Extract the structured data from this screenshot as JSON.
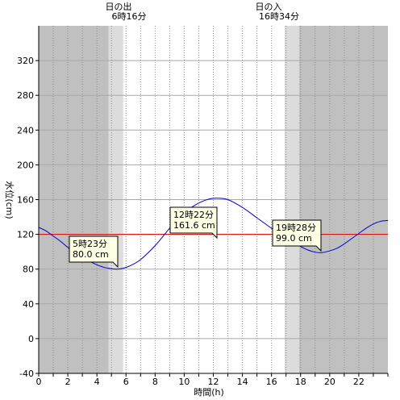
{
  "chart_data": {
    "type": "line",
    "xlabel": "時間(h)",
    "ylabel": "水位(cm)",
    "xlim": [
      0,
      24
    ],
    "ylim": [
      -40,
      360
    ],
    "x_ticks": [
      0,
      2,
      4,
      6,
      8,
      10,
      12,
      14,
      16,
      18,
      20,
      22
    ],
    "y_ticks": [
      -40,
      0,
      40,
      80,
      120,
      160,
      200,
      240,
      280,
      320
    ],
    "grid": "dotted vertical every hour, solid horizontal",
    "reference_line": {
      "y": 120,
      "color": "#dd0000"
    },
    "sunrise": {
      "label": "日の出",
      "time": "6時16分",
      "hour": 6.267
    },
    "sunset": {
      "label": "日の入",
      "time": "16時34分",
      "hour": 16.567
    },
    "shading": [
      {
        "from": 0,
        "to": 4.8,
        "color": "#c0c0c0"
      },
      {
        "from": 4.8,
        "to": 5.8,
        "color": "#dcdcdc"
      },
      {
        "from": 16.9,
        "to": 17.9,
        "color": "#dcdcdc"
      },
      {
        "from": 17.9,
        "to": 24,
        "color": "#c0c0c0"
      }
    ],
    "series": [
      {
        "color": "#0000cc",
        "x": [
          0,
          0.5,
          1,
          1.5,
          2,
          2.5,
          3,
          3.5,
          4,
          4.5,
          5,
          5.383,
          5.8,
          6.3,
          7,
          8,
          9,
          10,
          11,
          11.8,
          12.367,
          13,
          14,
          15,
          16,
          16.5,
          17,
          17.5,
          18,
          18.5,
          19,
          19.467,
          20,
          20.5,
          21,
          22,
          22.5,
          23,
          23.5,
          24
        ],
        "y": [
          128,
          124,
          118,
          112,
          105,
          99,
          93,
          89,
          85,
          82,
          80.5,
          80,
          81,
          84,
          91,
          107,
          127,
          145,
          156,
          161,
          161.6,
          160,
          151,
          139,
          127,
          122,
          117,
          111,
          106,
          102,
          99.5,
          99,
          101,
          104,
          109,
          121,
          127,
          132,
          135,
          136
        ]
      }
    ],
    "annotations": [
      {
        "x": 5.383,
        "y": 80.0,
        "time": "5時23分",
        "value": "80.0 cm"
      },
      {
        "x": 12.367,
        "y": 161.6,
        "time": "12時22分",
        "value": "161.6 cm"
      },
      {
        "x": 19.467,
        "y": 99.0,
        "time": "19時28分",
        "value": "99.0 cm"
      }
    ]
  }
}
